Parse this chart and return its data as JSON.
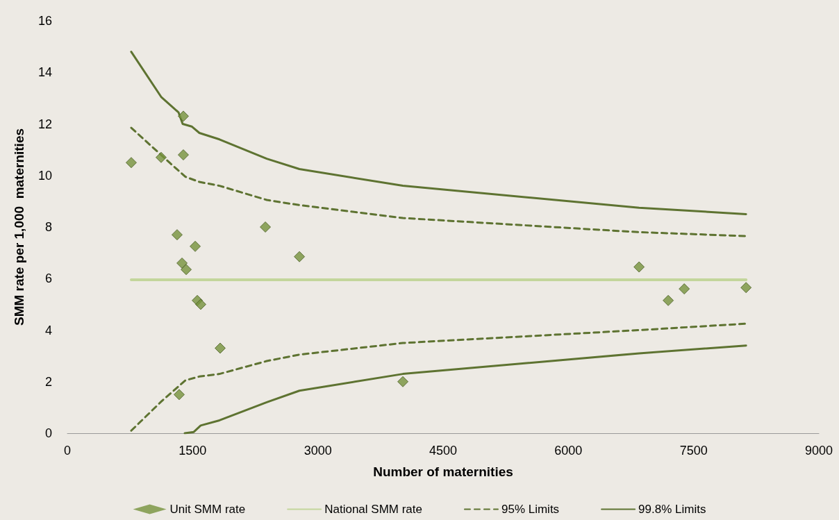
{
  "chart_data": {
    "type": "scatter",
    "xlabel": "Number of maternities",
    "ylabel": "SMM rate per 1,000  maternities",
    "xlim": [
      0,
      9000
    ],
    "xticks": [
      0,
      1500,
      3000,
      4500,
      6000,
      7500,
      9000
    ],
    "ylim": [
      0,
      16
    ],
    "yticks": [
      0,
      2,
      4,
      6,
      8,
      10,
      12,
      14,
      16
    ],
    "legend": "bottom",
    "series": [
      {
        "name": "Unit SMM rate",
        "type": "scatter",
        "marker": "diamond",
        "color": "#76923c",
        "x": [
          765,
          1123,
          1389,
          1389,
          1314,
          1531,
          1373,
          1423,
          1556,
          1597,
          1830,
          1339,
          2371,
          2779,
          4018,
          6847,
          7196,
          7388,
          8128
        ],
        "values": [
          10.5,
          10.7,
          12.3,
          10.8,
          7.7,
          7.25,
          6.6,
          6.35,
          5.15,
          5.0,
          3.3,
          1.5,
          8.0,
          6.85,
          2.0,
          6.45,
          5.15,
          5.6,
          5.65
        ]
      },
      {
        "name": "National SMM rate",
        "type": "line",
        "marker": "none",
        "line_style": "solid",
        "color": "#c3d69b",
        "x": [
          765,
          8128
        ],
        "values": [
          5.95,
          5.95
        ]
      },
      {
        "name": "95% Limits",
        "type": "line",
        "marker": "none",
        "line_style": "dashed",
        "color": "#5e7331",
        "x": [
          765,
          1223,
          1414,
          1581,
          1822,
          2388,
          2779,
          4018,
          6847,
          8128
        ],
        "values": [
          11.85,
          10.5,
          9.95,
          9.75,
          9.6,
          9.05,
          8.85,
          8.35,
          7.8,
          7.65
        ]
      },
      {
        "name": null,
        "type": "line",
        "marker": "none",
        "line_style": "dashed",
        "color": "#5e7331",
        "x": [
          765,
          1131,
          1414,
          1581,
          1822,
          2388,
          2779,
          4018,
          6847,
          8128
        ],
        "values": [
          0.1,
          1.25,
          2.05,
          2.2,
          2.3,
          2.8,
          3.05,
          3.5,
          4.0,
          4.25
        ]
      },
      {
        "name": "99.8% Limits",
        "type": "line",
        "marker": "none",
        "line_style": "solid",
        "color": "#5e7331",
        "x": [
          765,
          1123,
          1331,
          1381,
          1489,
          1581,
          1822,
          2388,
          2779,
          4018,
          6847,
          8128
        ],
        "values": [
          14.8,
          13.05,
          12.45,
          12.0,
          11.9,
          11.65,
          11.4,
          10.65,
          10.25,
          9.6,
          8.75,
          8.5
        ]
      },
      {
        "name": null,
        "type": "line",
        "marker": "none",
        "line_style": "solid",
        "color": "#5e7331",
        "x": [
          1406,
          1514,
          1597,
          1822,
          2388,
          2779,
          4018,
          6847,
          8128
        ],
        "values": [
          0,
          0.05,
          0.3,
          0.5,
          1.2,
          1.65,
          2.3,
          3.1,
          3.4
        ]
      }
    ]
  }
}
